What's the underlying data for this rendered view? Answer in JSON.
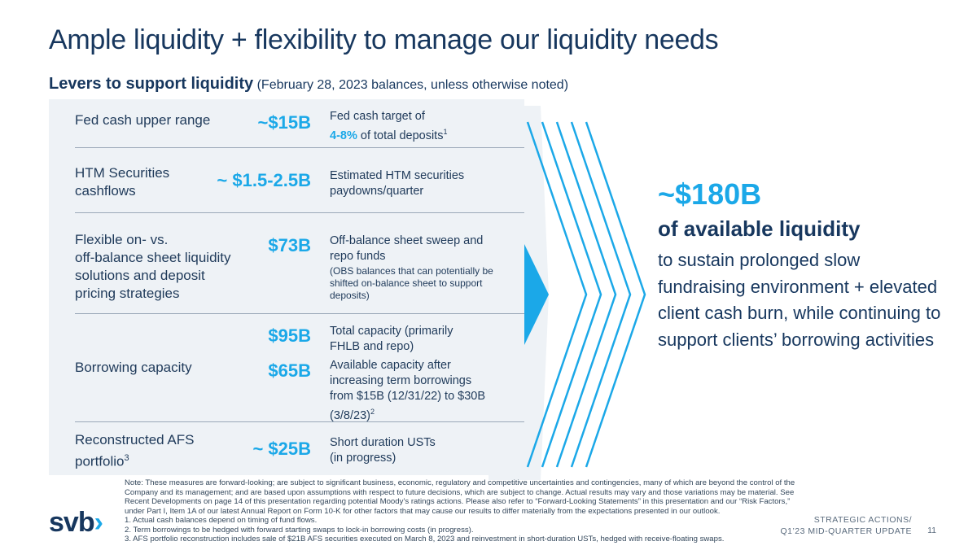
{
  "title": "Ample liquidity + flexibility to manage our liquidity needs",
  "subtitle": {
    "bold": "Levers to support liquidity",
    "note": " (February 28, 2023 balances, unless otherwise noted)"
  },
  "rows": {
    "fed": {
      "label": "Fed cash upper range",
      "value": "~$15B",
      "desc1": "Fed cash target of",
      "desc_hl": "4-8%",
      "desc2": " of total deposits",
      "sup": "1"
    },
    "htm": {
      "label1": "HTM Securities",
      "label2": "cashflows",
      "value": "~ $1.5-2.5B",
      "desc1": "Estimated HTM securities",
      "desc2": "paydowns/quarter"
    },
    "flex": {
      "label1": "Flexible on- vs.",
      "label2": "off-balance sheet liquidity",
      "label3": "solutions and deposit",
      "label4": "pricing strategies",
      "value": "$73B",
      "desc1": "Off-balance sheet sweep and",
      "desc2": "repo funds",
      "desc_small": "(OBS balances that can potentially be shifted on-balance sheet to support deposits)"
    },
    "borrow": {
      "label": "Borrowing capacity",
      "value1": "$95B",
      "desc1a": "Total capacity (primarily",
      "desc1b": "FHLB and repo)",
      "value2": "$65B",
      "desc2a": "Available capacity after",
      "desc2b": "increasing term borrowings",
      "desc2c": "from $15B (12/31/22) to $30B",
      "desc2d": "(3/8/23)",
      "sup": "2"
    },
    "afs": {
      "label1": "Reconstructed AFS",
      "label2": "portfolio",
      "sup": "3",
      "value": "~ $25B",
      "desc1": "Short duration USTs",
      "desc2": "(in progress)"
    }
  },
  "summary": {
    "amount": "~$180B",
    "headline": "of available liquidity",
    "body": "to sustain prolonged slow fundraising environment + elevated client cash burn, while continuing to support clients’ borrowing activities"
  },
  "notes": {
    "main": "Note: These measures are forward-looking; are subject to significant business, economic, regulatory and competitive uncertainties and contingencies, many of which are beyond the control of the Company and its management; and are based upon assumptions with respect to future decisions, which are subject to change. Actual results may vary and those variations may be material. See Recent Developments on page 14 of this presentation regarding potential Moody’s ratings actions. Please also refer to “Forward-Looking Statements” in this presentation and our “Risk Factors,” under Part I, Item 1A of our latest Annual Report on Form 10-K for other factors that may cause our results to differ materially from the expectations presented in our outlook.",
    "n1": "1. Actual cash balances depend on timing of fund flows.",
    "n2": "2. Term borrowings to be hedged with forward starting swaps to lock-in borrowing costs (in progress).",
    "n3": "3. AFS portfolio reconstruction includes sale of $21B AFS securities executed on March 8, 2023 and reinvestment in short-duration USTs, hedged with receive-floating swaps."
  },
  "logo": {
    "text": "svb",
    "chevron": "›"
  },
  "footer": {
    "line1": "STRATEGIC ACTIONS/",
    "line2": "Q1’23 MID-QUARTER UPDATE",
    "page": "11"
  },
  "colors": {
    "navy": "#17375e",
    "accent": "#1ba8e8",
    "panel": "#eef2f6"
  }
}
